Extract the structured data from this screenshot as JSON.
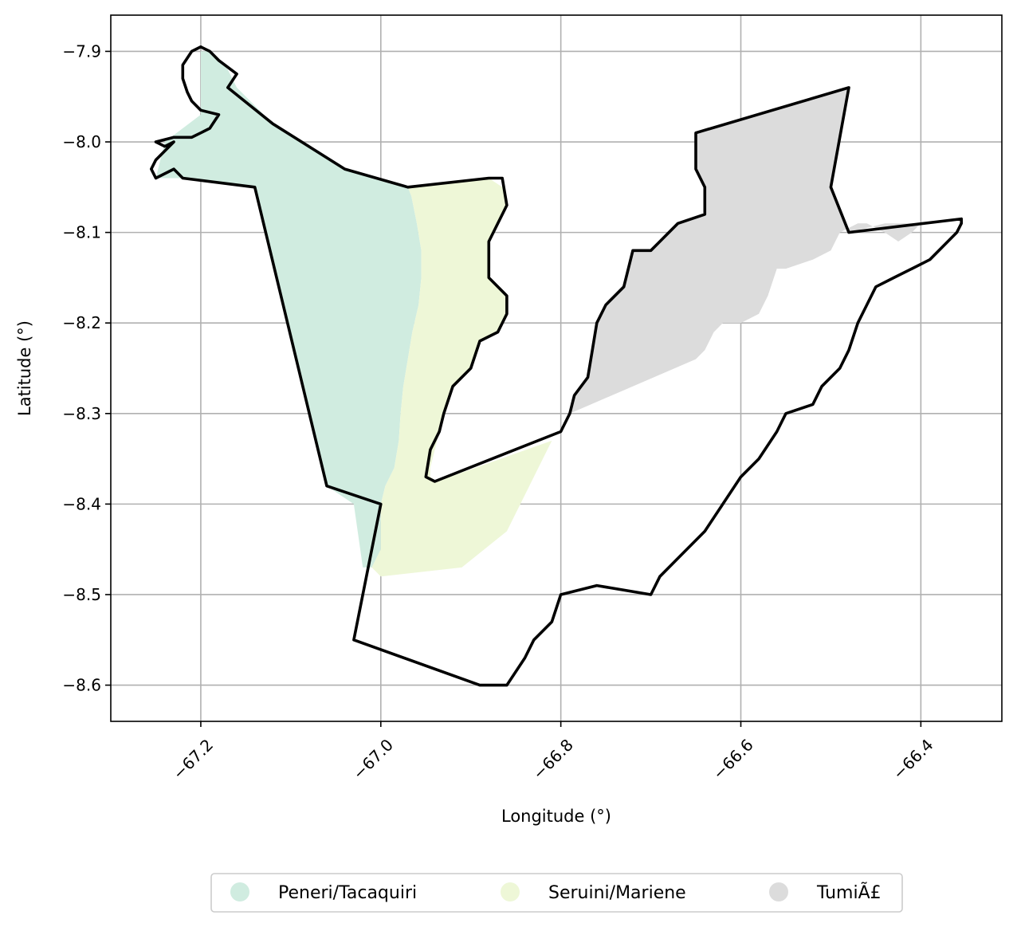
{
  "chart_data": {
    "type": "map",
    "xlabel": "Longitude (°)",
    "ylabel": "Latitude (°)",
    "xlim": [
      -67.3,
      -66.31
    ],
    "ylim": [
      -8.64,
      -7.86
    ],
    "xticks": [
      -67.2,
      -67.0,
      -66.8,
      -66.6,
      -66.4
    ],
    "xtick_labels": [
      "−67.2",
      "−67.0",
      "−66.8",
      "−66.6",
      "−66.4"
    ],
    "yticks": [
      -7.9,
      -8.0,
      -8.1,
      -8.2,
      -8.3,
      -8.4,
      -8.5,
      -8.6
    ],
    "ytick_labels": [
      "−7.9",
      "−8.0",
      "−8.1",
      "−8.2",
      "−8.3",
      "−8.4",
      "−8.5",
      "−8.6"
    ],
    "grid": true,
    "legend_position": "bottom-center",
    "regions": [
      {
        "name": "Peneri/Tacaquiri",
        "color": "#d0ece0",
        "coords": [
          [
            -67.25,
            -8.04
          ],
          [
            -67.24,
            -8.0
          ],
          [
            -67.2,
            -7.97
          ],
          [
            -67.2,
            -7.9
          ],
          [
            -67.19,
            -7.9
          ],
          [
            -67.17,
            -7.92
          ],
          [
            -67.16,
            -7.94
          ],
          [
            -67.12,
            -7.98
          ],
          [
            -67.04,
            -8.03
          ],
          [
            -66.97,
            -8.05
          ],
          [
            -66.966,
            -8.06
          ],
          [
            -66.96,
            -8.09
          ],
          [
            -66.955,
            -8.12
          ],
          [
            -66.955,
            -8.15
          ],
          [
            -66.958,
            -8.18
          ],
          [
            -66.965,
            -8.21
          ],
          [
            -66.97,
            -8.24
          ],
          [
            -66.975,
            -8.27
          ],
          [
            -66.978,
            -8.3
          ],
          [
            -66.98,
            -8.33
          ],
          [
            -66.985,
            -8.36
          ],
          [
            -66.995,
            -8.38
          ],
          [
            -67.0,
            -8.4
          ],
          [
            -67.0,
            -8.43
          ],
          [
            -67.0,
            -8.45
          ],
          [
            -67.01,
            -8.47
          ],
          [
            -67.02,
            -8.47
          ],
          [
            -67.03,
            -8.4
          ],
          [
            -67.06,
            -8.38
          ],
          [
            -67.14,
            -8.05
          ],
          [
            -67.22,
            -8.04
          ]
        ]
      },
      {
        "name": "Seruini/Mariene",
        "color": "#eef7d7",
        "coords": [
          [
            -66.97,
            -8.05
          ],
          [
            -66.88,
            -8.04
          ],
          [
            -66.865,
            -8.05
          ],
          [
            -66.86,
            -8.07
          ],
          [
            -66.88,
            -8.11
          ],
          [
            -66.88,
            -8.15
          ],
          [
            -66.86,
            -8.17
          ],
          [
            -66.86,
            -8.19
          ],
          [
            -66.87,
            -8.21
          ],
          [
            -66.89,
            -8.22
          ],
          [
            -66.9,
            -8.25
          ],
          [
            -66.92,
            -8.27
          ],
          [
            -66.93,
            -8.3
          ],
          [
            -66.935,
            -8.32
          ],
          [
            -66.945,
            -8.36
          ],
          [
            -66.945,
            -8.37
          ],
          [
            -66.938,
            -8.375
          ],
          [
            -66.81,
            -8.33
          ],
          [
            -66.86,
            -8.43
          ],
          [
            -66.91,
            -8.47
          ],
          [
            -67.0,
            -8.48
          ],
          [
            -67.01,
            -8.47
          ],
          [
            -67.0,
            -8.45
          ],
          [
            -67.0,
            -8.43
          ],
          [
            -67.0,
            -8.4
          ],
          [
            -66.995,
            -8.38
          ],
          [
            -66.985,
            -8.36
          ],
          [
            -66.98,
            -8.33
          ],
          [
            -66.978,
            -8.3
          ],
          [
            -66.975,
            -8.27
          ],
          [
            -66.97,
            -8.24
          ],
          [
            -66.965,
            -8.21
          ],
          [
            -66.958,
            -8.18
          ],
          [
            -66.955,
            -8.15
          ],
          [
            -66.955,
            -8.12
          ],
          [
            -66.96,
            -8.09
          ],
          [
            -66.966,
            -8.06
          ]
        ]
      },
      {
        "name": "TumiÃ£",
        "color": "#dcdcdc",
        "coords": [
          [
            -66.79,
            -8.3
          ],
          [
            -66.785,
            -8.28
          ],
          [
            -66.77,
            -8.26
          ],
          [
            -66.765,
            -8.23
          ],
          [
            -66.76,
            -8.2
          ],
          [
            -66.75,
            -8.18
          ],
          [
            -66.73,
            -8.16
          ],
          [
            -66.72,
            -8.12
          ],
          [
            -66.7,
            -8.12
          ],
          [
            -66.69,
            -8.11
          ],
          [
            -66.67,
            -8.09
          ],
          [
            -66.64,
            -8.08
          ],
          [
            -66.64,
            -8.05
          ],
          [
            -66.65,
            -8.03
          ],
          [
            -66.65,
            -7.99
          ],
          [
            -66.48,
            -7.94
          ],
          [
            -66.5,
            -8.05
          ],
          [
            -66.48,
            -8.1
          ],
          [
            -66.44,
            -8.09
          ],
          [
            -66.4,
            -8.09
          ],
          [
            -66.41,
            -8.1
          ],
          [
            -66.425,
            -8.11
          ],
          [
            -66.44,
            -8.1
          ],
          [
            -66.46,
            -8.09
          ],
          [
            -66.47,
            -8.09
          ],
          [
            -66.49,
            -8.1
          ],
          [
            -66.5,
            -8.12
          ],
          [
            -66.52,
            -8.13
          ],
          [
            -66.55,
            -8.14
          ],
          [
            -66.56,
            -8.14
          ],
          [
            -66.57,
            -8.17
          ],
          [
            -66.58,
            -8.19
          ],
          [
            -66.6,
            -8.2
          ],
          [
            -66.62,
            -8.2
          ],
          [
            -66.63,
            -8.21
          ],
          [
            -66.64,
            -8.23
          ],
          [
            -66.65,
            -8.24
          ]
        ]
      }
    ],
    "boundaries": [
      [
        [
          -67.22,
          -8.04
        ],
        [
          -67.14,
          -8.05
        ],
        [
          -67.06,
          -8.38
        ],
        [
          -67.0,
          -8.4
        ],
        [
          -67.03,
          -8.55
        ],
        [
          -66.89,
          -8.6
        ],
        [
          -66.86,
          -8.6
        ],
        [
          -66.84,
          -8.57
        ],
        [
          -66.83,
          -8.55
        ],
        [
          -66.81,
          -8.53
        ],
        [
          -66.8,
          -8.5
        ],
        [
          -66.76,
          -8.49
        ],
        [
          -66.7,
          -8.5
        ],
        [
          -66.69,
          -8.48
        ],
        [
          -66.67,
          -8.46
        ],
        [
          -66.64,
          -8.43
        ],
        [
          -66.62,
          -8.4
        ],
        [
          -66.6,
          -8.37
        ],
        [
          -66.58,
          -8.35
        ],
        [
          -66.56,
          -8.32
        ],
        [
          -66.55,
          -8.3
        ],
        [
          -66.52,
          -8.29
        ],
        [
          -66.51,
          -8.27
        ],
        [
          -66.49,
          -8.25
        ],
        [
          -66.48,
          -8.23
        ],
        [
          -66.47,
          -8.2
        ],
        [
          -66.46,
          -8.18
        ],
        [
          -66.45,
          -8.16
        ],
        [
          -66.43,
          -8.15
        ],
        [
          -66.41,
          -8.14
        ],
        [
          -66.39,
          -8.13
        ],
        [
          -66.37,
          -8.11
        ],
        [
          -66.36,
          -8.1
        ],
        [
          -66.355,
          -8.09
        ],
        [
          -66.355,
          -8.085
        ],
        [
          -66.48,
          -8.1
        ],
        [
          -66.5,
          -8.05
        ],
        [
          -66.48,
          -7.94
        ],
        [
          -66.65,
          -7.99
        ],
        [
          -66.65,
          -8.03
        ],
        [
          -66.64,
          -8.05
        ],
        [
          -66.64,
          -8.08
        ],
        [
          -66.67,
          -8.09
        ],
        [
          -66.69,
          -8.11
        ],
        [
          -66.7,
          -8.12
        ],
        [
          -66.72,
          -8.12
        ],
        [
          -66.73,
          -8.16
        ],
        [
          -66.75,
          -8.18
        ],
        [
          -66.76,
          -8.2
        ],
        [
          -66.765,
          -8.23
        ],
        [
          -66.77,
          -8.26
        ],
        [
          -66.785,
          -8.28
        ],
        [
          -66.79,
          -8.3
        ],
        [
          -66.8,
          -8.32
        ],
        [
          -66.94,
          -8.375
        ],
        [
          -66.95,
          -8.37
        ],
        [
          -66.945,
          -8.34
        ],
        [
          -66.935,
          -8.32
        ],
        [
          -66.93,
          -8.3
        ],
        [
          -66.92,
          -8.27
        ],
        [
          -66.9,
          -8.25
        ],
        [
          -66.89,
          -8.22
        ],
        [
          -66.87,
          -8.21
        ],
        [
          -66.86,
          -8.19
        ],
        [
          -66.86,
          -8.17
        ],
        [
          -66.88,
          -8.15
        ],
        [
          -66.88,
          -8.11
        ],
        [
          -66.86,
          -8.07
        ],
        [
          -66.865,
          -8.04
        ],
        [
          -66.88,
          -8.04
        ],
        [
          -66.97,
          -8.05
        ],
        [
          -67.04,
          -8.03
        ],
        [
          -67.12,
          -7.98
        ],
        [
          -67.17,
          -7.94
        ],
        [
          -67.16,
          -7.925
        ],
        [
          -67.18,
          -7.91
        ],
        [
          -67.19,
          -7.9
        ],
        [
          -67.2,
          -7.895
        ],
        [
          -67.21,
          -7.9
        ],
        [
          -67.22,
          -7.915
        ],
        [
          -67.22,
          -7.93
        ],
        [
          -67.215,
          -7.945
        ],
        [
          -67.21,
          -7.955
        ],
        [
          -67.2,
          -7.965
        ],
        [
          -67.18,
          -7.97
        ],
        [
          -67.19,
          -7.985
        ],
        [
          -67.2,
          -7.99
        ],
        [
          -67.21,
          -7.995
        ],
        [
          -67.23,
          -7.995
        ],
        [
          -67.25,
          -8.0
        ],
        [
          -67.24,
          -8.005
        ],
        [
          -67.23,
          -8.0
        ],
        [
          -67.25,
          -8.02
        ],
        [
          -67.255,
          -8.03
        ],
        [
          -67.25,
          -8.04
        ],
        [
          -67.23,
          -8.03
        ],
        [
          -67.22,
          -8.04
        ]
      ]
    ]
  }
}
